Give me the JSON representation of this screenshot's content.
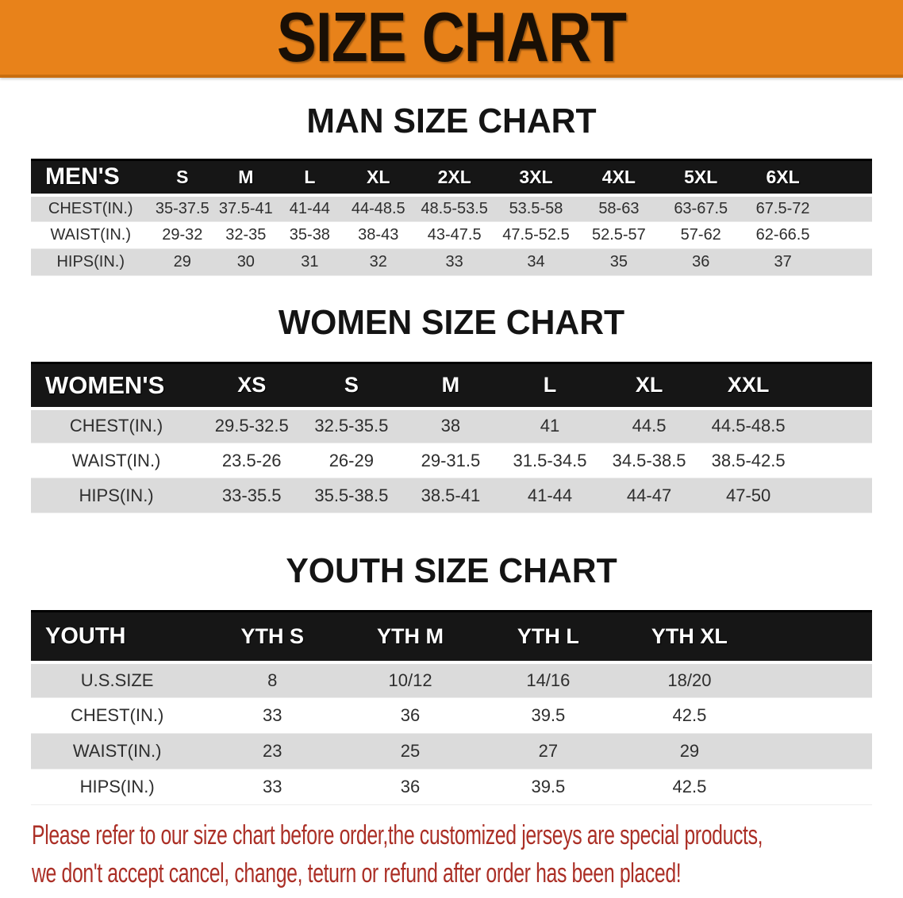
{
  "banner": {
    "title": "SIZE CHART"
  },
  "sections": [
    {
      "heading": "MAN SIZE CHART",
      "table": {
        "label": "MEN'S",
        "columns": [
          "S",
          "M",
          "L",
          "XL",
          "2XL",
          "3XL",
          "4XL",
          "5XL",
          "6XL"
        ],
        "rows": [
          {
            "label": "CHEST(IN.)",
            "values": [
              "35-37.5",
              "37.5-41",
              "41-44",
              "44-48.5",
              "48.5-53.5",
              "53.5-58",
              "58-63",
              "63-67.5",
              "67.5-72"
            ]
          },
          {
            "label": "WAIST(IN.)",
            "values": [
              "29-32",
              "32-35",
              "35-38",
              "38-43",
              "43-47.5",
              "47.5-52.5",
              "52.5-57",
              "57-62",
              "62-66.5"
            ]
          },
          {
            "label": "HIPS(IN.)",
            "values": [
              "29",
              "30",
              "31",
              "32",
              "33",
              "34",
              "35",
              "36",
              "37"
            ]
          }
        ]
      }
    },
    {
      "heading": "WOMEN SIZE CHART",
      "table": {
        "label": "WOMEN'S",
        "columns": [
          "XS",
          "S",
          "M",
          "L",
          "XL",
          "XXL"
        ],
        "rows": [
          {
            "label": "CHEST(IN.)",
            "values": [
              "29.5-32.5",
              "32.5-35.5",
              "38",
              "41",
              "44.5",
              "44.5-48.5"
            ]
          },
          {
            "label": "WAIST(IN.)",
            "values": [
              "23.5-26",
              "26-29",
              "29-31.5",
              "31.5-34.5",
              "34.5-38.5",
              "38.5-42.5"
            ]
          },
          {
            "label": "HIPS(IN.)",
            "values": [
              "33-35.5",
              "35.5-38.5",
              "38.5-41",
              "41-44",
              "44-47",
              "47-50"
            ]
          }
        ]
      }
    },
    {
      "heading": "YOUTH SIZE CHART",
      "table": {
        "label": "YOUTH",
        "columns": [
          "YTH S",
          "YTH M",
          "YTH L",
          "YTH XL"
        ],
        "rows": [
          {
            "label": "U.S.SIZE",
            "values": [
              "8",
              "10/12",
              "14/16",
              "18/20"
            ]
          },
          {
            "label": "CHEST(IN.)",
            "values": [
              "33",
              "36",
              "39.5",
              "42.5"
            ]
          },
          {
            "label": "WAIST(IN.)",
            "values": [
              "23",
              "25",
              "27",
              "29"
            ]
          },
          {
            "label": "HIPS(IN.)",
            "values": [
              "33",
              "36",
              "39.5",
              "42.5"
            ]
          }
        ]
      }
    }
  ],
  "notice": {
    "line1": "Please refer to our size chart before order,the customized jerseys are special products,",
    "line2": "we don't accept cancel, change, teturn or refund after order has been placed!"
  },
  "colors": {
    "banner_bg": "#E8821A",
    "banner_border": "#C96E10",
    "header_bg": "#161616",
    "row_alt_bg": "#DBDBDB",
    "notice_red": "#AB2F26"
  }
}
